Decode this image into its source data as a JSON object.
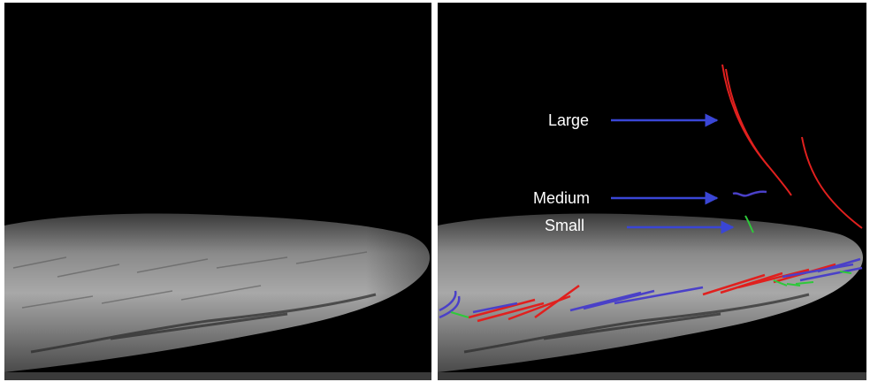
{
  "figure": {
    "left_panel": {
      "content": "grayscale microscopy image"
    },
    "right_panel": {
      "content": "same image with tracked strands overlaid",
      "annotations": [
        {
          "key": "large",
          "label": "Large"
        },
        {
          "key": "medium",
          "label": "Medium"
        },
        {
          "key": "small",
          "label": "Small"
        }
      ]
    }
  },
  "colors": {
    "large": "#e0201e",
    "medium": "#4a40c8",
    "small": "#2ec83a",
    "arrow": "#3a46d6",
    "background": "#000000"
  }
}
